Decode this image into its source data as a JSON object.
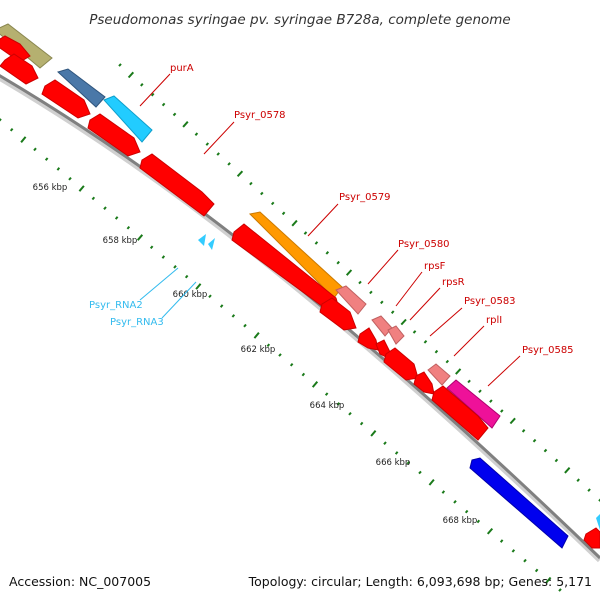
{
  "title": "Pseudomonas syringae pv. syringae B728a, complete genome",
  "footer": {
    "accession": "Accession: NC_007005",
    "summary": "Topology: circular; Length: 6,093,698 bp; Genes: 5,171"
  },
  "colors": {
    "backbone": "#808080",
    "cds": "#ff0000",
    "rna": "#33ccff",
    "tick": "#1a7a1a",
    "label_cds": "#cc0000",
    "label_rna": "#33bbee"
  },
  "scale": {
    "ticks": [
      {
        "label": "656 kbp"
      },
      {
        "label": "658 kbp"
      },
      {
        "label": "660 kbp"
      },
      {
        "label": "662 kbp"
      },
      {
        "label": "664 kbp"
      },
      {
        "label": "666 kbp"
      },
      {
        "label": "668 kbp"
      }
    ]
  },
  "labels": [
    {
      "text": "purA",
      "type": "cds"
    },
    {
      "text": "Psyr_0578",
      "type": "cds"
    },
    {
      "text": "Psyr_0579",
      "type": "cds"
    },
    {
      "text": "Psyr_0580",
      "type": "cds"
    },
    {
      "text": "rpsF",
      "type": "cds"
    },
    {
      "text": "rpsR",
      "type": "cds"
    },
    {
      "text": "Psyr_0583",
      "type": "cds"
    },
    {
      "text": "rplI",
      "type": "cds"
    },
    {
      "text": "Psyr_0585",
      "type": "cds"
    },
    {
      "text": "Psyr_RNA2",
      "type": "rna"
    },
    {
      "text": "Psyr_RNA3",
      "type": "rna"
    }
  ]
}
